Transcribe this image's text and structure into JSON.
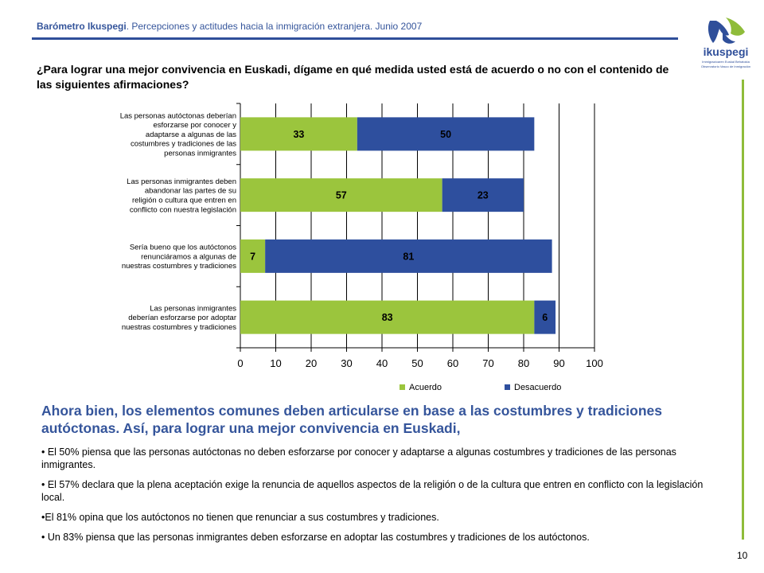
{
  "header": {
    "brand": "Barómetro Ikuspegi",
    "subtitle": ". Percepciones y actitudes hacia la inmigración extranjera. Junio 2007"
  },
  "logo": {
    "name": "ikuspegi",
    "tagline_1": "Immigrazioaren Euskal Behatokia",
    "tagline_2": "Observatorio Vasco de Inmigración"
  },
  "question": "¿Para lograr  una mejor convivencia en Euskadi, dígame en qué medida usted está de acuerdo o no con el contenido de las siguientes afirmaciones?",
  "colors": {
    "acuerdo": "#9bc53d",
    "desacuerdo": "#2e4f9e",
    "accent": "#35559b",
    "rule_green": "#8fbc3a"
  },
  "chart_data": {
    "type": "bar",
    "orientation": "horizontal",
    "stacked": true,
    "categories": [
      [
        "Las personas autóctonas deberían",
        "esforzarse por conocer y",
        "adaptarse a algunas de las",
        "costumbres y tradiciones de las",
        "personas inmigrantes"
      ],
      [
        "Las personas inmigrantes deben",
        "abandonar las partes de su",
        "religión o cultura que entren en",
        "conflicto con nuestra legislación"
      ],
      [
        "Sería bueno que los autóctonos",
        "renunciáramos a algunas de",
        "nuestras costumbres y tradiciones"
      ],
      [
        "Las personas inmigrantes",
        "deberían esforzarse por adoptar",
        "nuestras costumbres y tradiciones"
      ]
    ],
    "series": [
      {
        "name": "Acuerdo",
        "values": [
          33,
          57,
          7,
          83
        ]
      },
      {
        "name": "Desacuerdo",
        "values": [
          50,
          23,
          81,
          6
        ]
      }
    ],
    "xlim": [
      0,
      100
    ],
    "xticks": [
      0,
      10,
      20,
      30,
      40,
      50,
      60,
      70,
      80,
      90,
      100
    ],
    "grid": "vertical",
    "legend": "bottom"
  },
  "summary": {
    "heading": "Ahora bien, los elementos comunes deben articularse en base a las costumbres y tradiciones autóctonas. Así, para lograr una mejor convivencia en Euskadi,",
    "bullets": [
      "•  El 50% piensa que las personas autóctonas no deben esforzarse por conocer y adaptarse a algunas costumbres y tradiciones de las personas inmigrantes.",
      "• El 57% declara que la plena aceptación exige la renuncia de aquellos aspectos de la religión o de la cultura que entren en conflicto con la legislación local.",
      "•El 81% opina que los autóctonos no tienen que renunciar a sus costumbres y tradiciones.",
      "• Un 83% piensa que las personas inmigrantes deben esforzarse en adoptar las costumbres y tradiciones de los autóctonos."
    ]
  },
  "page_number": "10"
}
